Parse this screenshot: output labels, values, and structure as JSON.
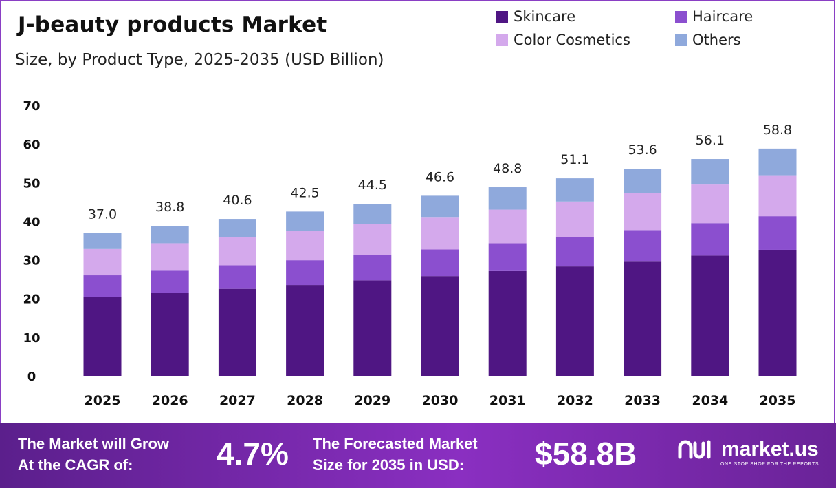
{
  "header": {
    "title": "J-beauty products Market",
    "subtitle": "Size, by Product Type, 2025-2035 (USD Billion)"
  },
  "legend": [
    {
      "label": "Skincare",
      "color": "#4f1683"
    },
    {
      "label": "Haircare",
      "color": "#8b4fcf"
    },
    {
      "label": "Color Cosmetics",
      "color": "#d4a9ec"
    },
    {
      "label": "Others",
      "color": "#8fa9dc"
    }
  ],
  "chart_data": {
    "type": "bar",
    "stacked": true,
    "categories": [
      "2025",
      "2026",
      "2027",
      "2028",
      "2029",
      "2030",
      "2031",
      "2032",
      "2033",
      "2034",
      "2035"
    ],
    "series": [
      {
        "name": "Skincare",
        "color": "#4f1683",
        "values": [
          20.4,
          21.5,
          22.5,
          23.5,
          24.7,
          25.8,
          27.1,
          28.3,
          29.7,
          31.1,
          32.6
        ]
      },
      {
        "name": "Haircare",
        "color": "#8b4fcf",
        "values": [
          5.6,
          5.7,
          6.1,
          6.4,
          6.6,
          6.9,
          7.2,
          7.6,
          8.0,
          8.4,
          8.7
        ]
      },
      {
        "name": "Color Cosmetics",
        "color": "#d4a9ec",
        "values": [
          6.8,
          7.1,
          7.2,
          7.6,
          8.0,
          8.4,
          8.7,
          9.2,
          9.6,
          10.0,
          10.6
        ]
      },
      {
        "name": "Others",
        "color": "#8fa9dc",
        "values": [
          4.2,
          4.5,
          4.8,
          5.0,
          5.2,
          5.5,
          5.8,
          6.0,
          6.3,
          6.6,
          6.9
        ]
      }
    ],
    "totals": [
      "37.0",
      "38.8",
      "40.6",
      "42.5",
      "44.5",
      "46.6",
      "48.8",
      "51.1",
      "53.6",
      "56.1",
      "58.8"
    ],
    "yticks": [
      "0",
      "10",
      "20",
      "30",
      "40",
      "50",
      "60",
      "70"
    ],
    "ylim": [
      0,
      70
    ],
    "grid": false,
    "legend_position": "top-right",
    "title": "J-beauty products Market",
    "xlabel": "",
    "ylabel": ""
  },
  "footer": {
    "cagr_label_line1": "The Market will Grow",
    "cagr_label_line2": "At the CAGR of:",
    "cagr_value": "4.7%",
    "forecast_label_line1": "The Forecasted Market",
    "forecast_label_line2": "Size for 2035 in USD:",
    "forecast_value": "$58.8B",
    "brand_name": "market.us",
    "brand_tagline": "ONE STOP SHOP FOR THE REPORTS"
  }
}
